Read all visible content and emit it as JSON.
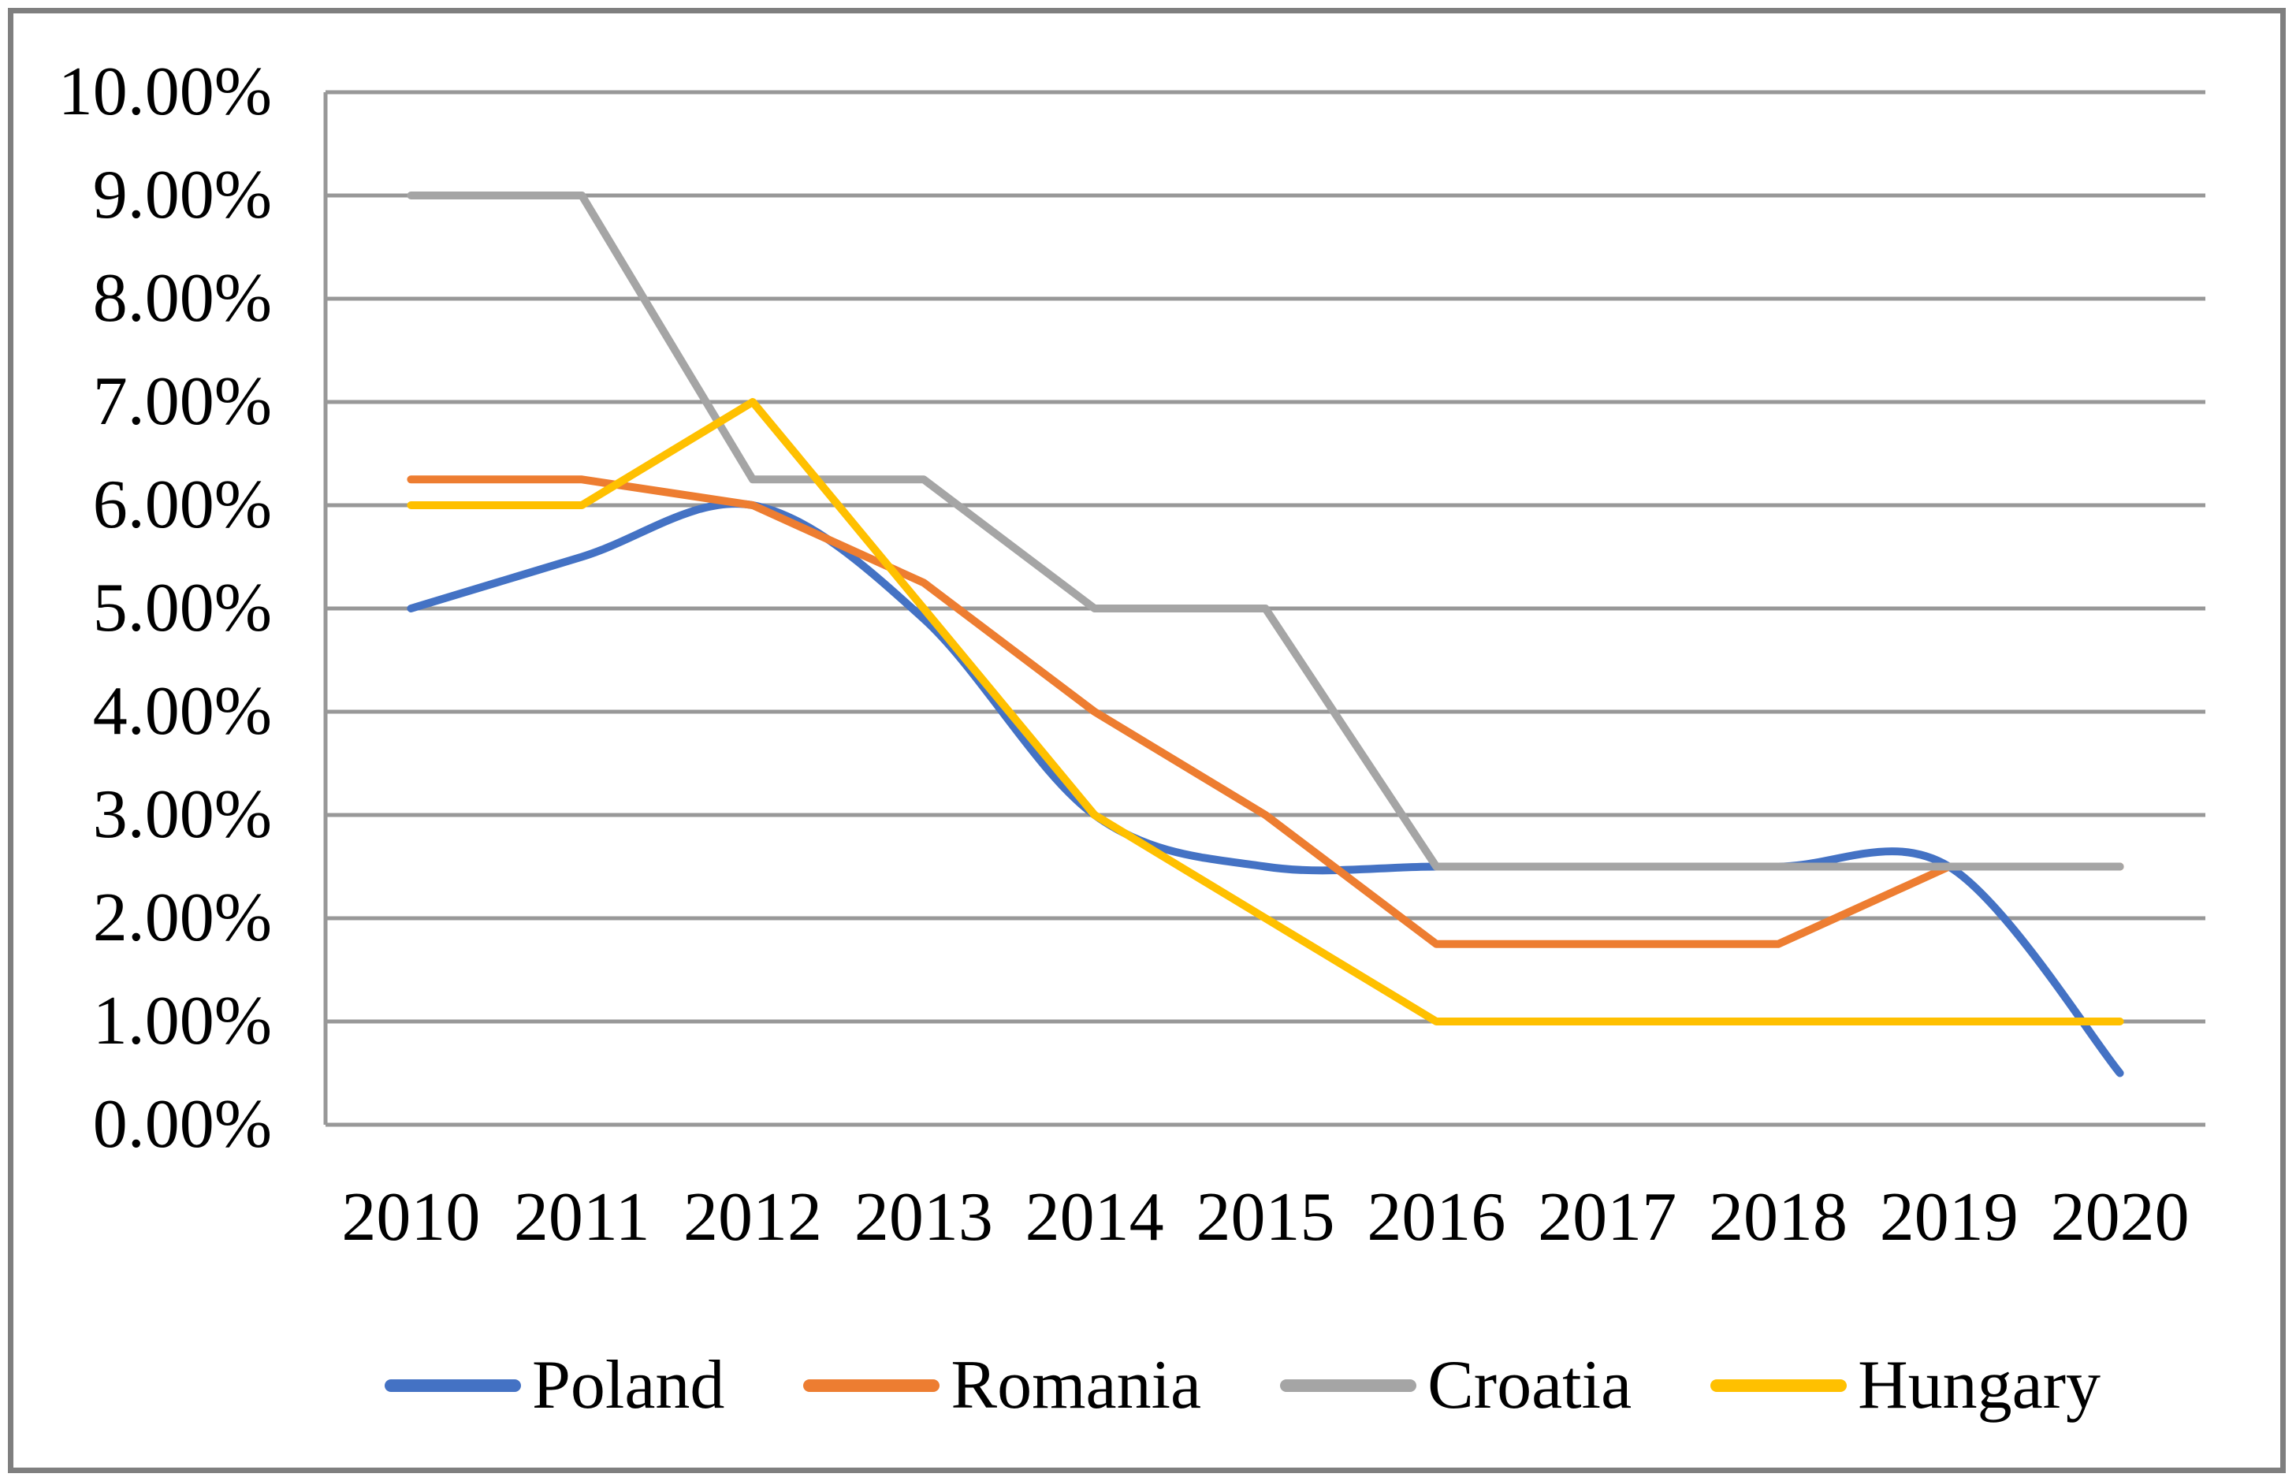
{
  "chart_data": {
    "type": "line",
    "title": "",
    "categories": [
      "2010",
      "2011",
      "2012",
      "2013",
      "2014",
      "2015",
      "2016",
      "2017",
      "2018",
      "2019",
      "2020"
    ],
    "series": [
      {
        "name": "Poland",
        "color": "#4472C4",
        "smooth": true,
        "values": [
          5.0,
          5.5,
          6.0,
          4.9,
          3.0,
          2.5,
          2.5,
          2.5,
          2.5,
          2.5,
          0.5
        ]
      },
      {
        "name": "Romania",
        "color": "#ED7D31",
        "smooth": false,
        "values": [
          6.25,
          6.25,
          6.0,
          5.25,
          4.0,
          3.0,
          1.75,
          1.75,
          1.75,
          2.5,
          2.5
        ]
      },
      {
        "name": "Croatia",
        "color": "#A5A5A5",
        "smooth": false,
        "values": [
          9.0,
          9.0,
          6.25,
          6.25,
          5.0,
          5.0,
          2.5,
          2.5,
          2.5,
          2.5,
          2.5
        ]
      },
      {
        "name": "Hungary",
        "color": "#FFC000",
        "smooth": false,
        "values": [
          6.0,
          6.0,
          7.0,
          5.0,
          3.0,
          2.0,
          1.0,
          1.0,
          1.0,
          1.0,
          1.0
        ]
      }
    ],
    "xlabel": "",
    "ylabel": "",
    "ylim": [
      0,
      10
    ],
    "ytick_step": 1,
    "ytick_labels": [
      "0.00%",
      "1.00%",
      "2.00%",
      "3.00%",
      "4.00%",
      "5.00%",
      "6.00%",
      "7.00%",
      "8.00%",
      "9.00%",
      "10.00%"
    ],
    "grid": true,
    "legend_position": "bottom",
    "colors": {
      "gridline": "#989898",
      "axis": "#989898",
      "figure_border": "#7F7F7F",
      "background": "#FFFFFF",
      "text": "#000000"
    }
  }
}
